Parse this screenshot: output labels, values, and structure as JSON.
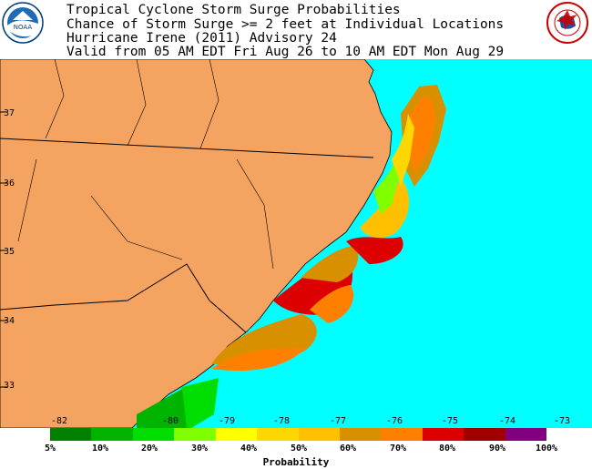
{
  "header": {
    "lines": [
      "Tropical Cyclone Storm Surge Probabilities",
      "Chance of Storm Surge >= 2 feet at Individual Locations",
      "Hurricane Irene (2011) Advisory 24",
      "Valid from 05 AM EDT Fri Aug 26 to 10 AM EDT Mon Aug 29"
    ],
    "left_logo": "NOAA",
    "right_logo": "NATIONAL WEATHER SERVICE"
  },
  "map": {
    "longitude_labels": [
      "-82",
      "-80",
      "-79",
      "-78",
      "-77",
      "-76",
      "-75",
      "-74",
      "-73"
    ],
    "latitude_labels": [
      "37",
      "36",
      "35",
      "34",
      "33"
    ],
    "colors": {
      "ocean": "#00ffff",
      "land": "#f4a460",
      "border": "#000000"
    }
  },
  "legend": {
    "ticks": [
      "5%",
      "10%",
      "20%",
      "30%",
      "40%",
      "50%",
      "60%",
      "70%",
      "80%",
      "90%",
      "100%"
    ],
    "colors": [
      "#007f00",
      "#00b300",
      "#00dd00",
      "#7fff00",
      "#ffff00",
      "#ffd700",
      "#ffc000",
      "#d99000",
      "#ff8000",
      "#dd0000",
      "#a00000",
      "#800080"
    ],
    "title": "Probability"
  }
}
